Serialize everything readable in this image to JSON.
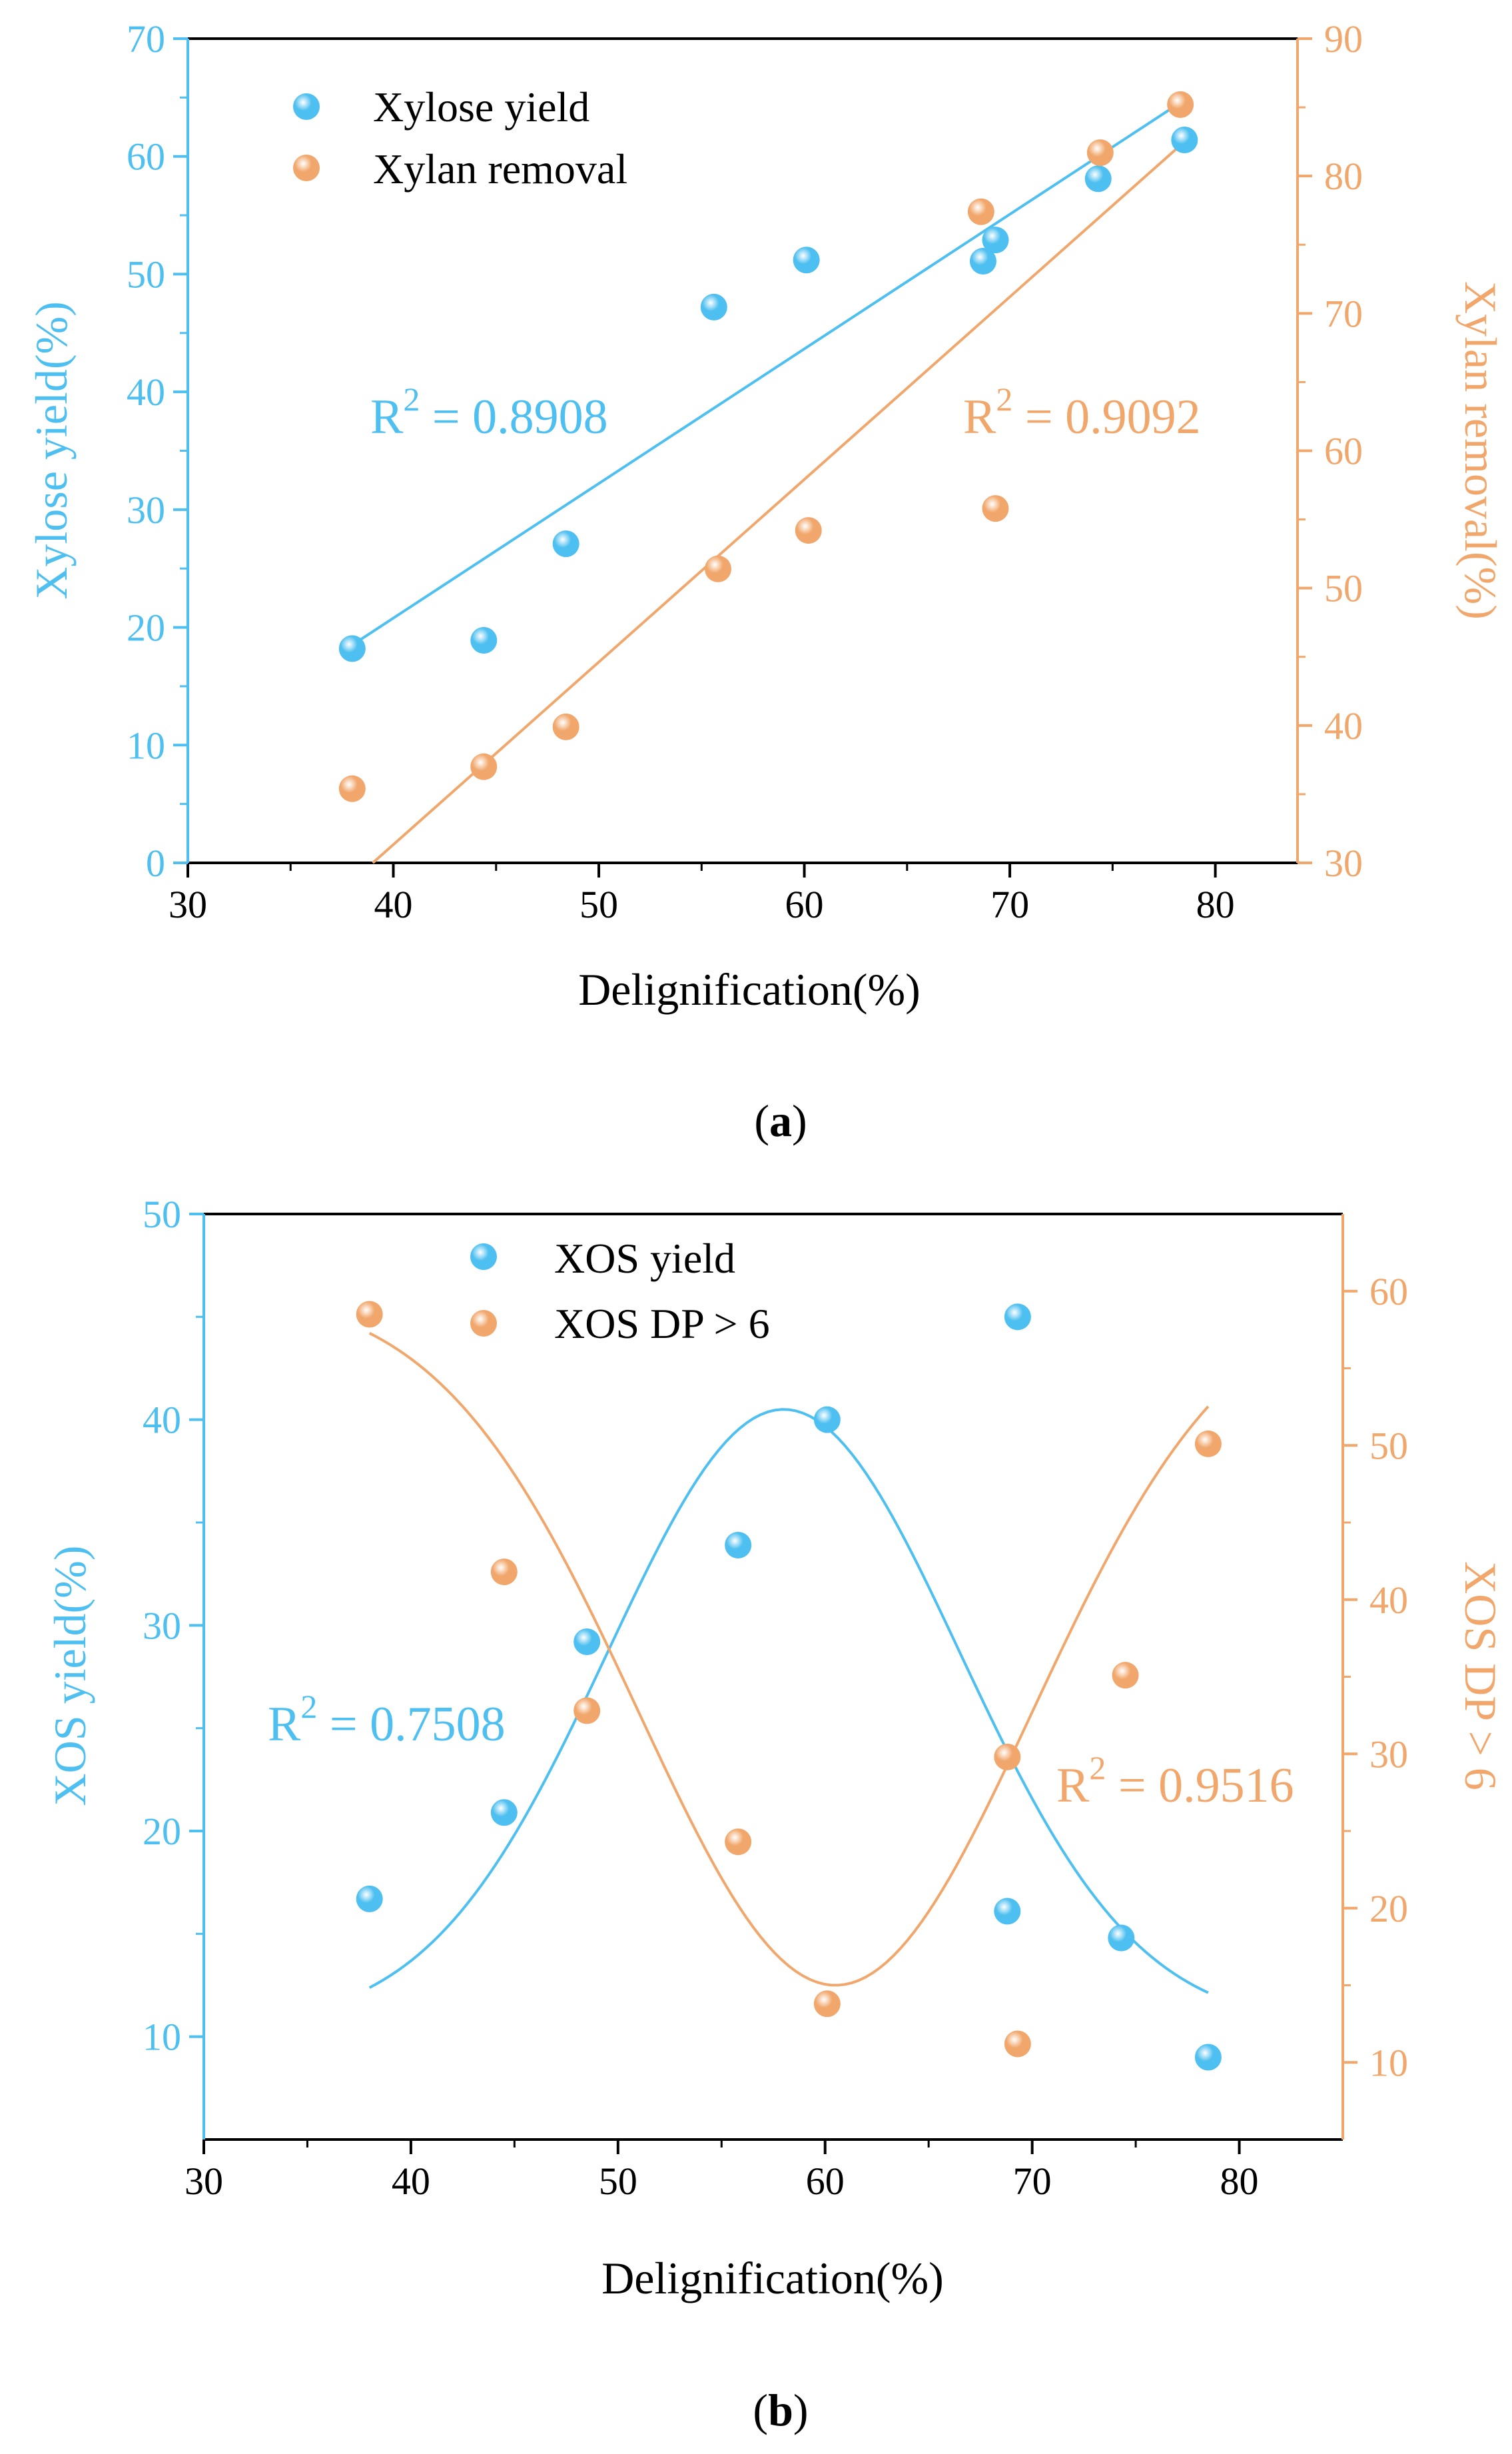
{
  "colors": {
    "blue": "#4DBFF0",
    "orange": "#F1A76B",
    "black": "#000000"
  },
  "chart_data": [
    {
      "type": "scatter",
      "panel": "a",
      "caption": "(a)",
      "caption_open": "(",
      "caption_letter": "a",
      "caption_close": ")",
      "xlabel": "Delignification(%)",
      "ylabel": "Xylose yield(%)",
      "y2label": "Xylan removal(%)",
      "xlim": [
        30,
        84
      ],
      "ylim": [
        0,
        70
      ],
      "y2lim": [
        30,
        90
      ],
      "xticks": [
        30,
        40,
        50,
        60,
        70,
        80
      ],
      "yticks": [
        0,
        10,
        20,
        30,
        40,
        50,
        60,
        70
      ],
      "y2ticks": [
        30,
        40,
        50,
        60,
        70,
        80,
        90
      ],
      "series": [
        {
          "name": "Xylose yield",
          "axis": "left",
          "color": "#4DBFF0",
          "r2_prefix": "R",
          "r2_exp": "2",
          "r2_value": " = 0.8908",
          "x": [
            38.0,
            44.4,
            48.4,
            55.6,
            60.1,
            68.7,
            69.3,
            74.3,
            78.5
          ],
          "y": [
            18.2,
            18.9,
            27.1,
            47.2,
            51.2,
            51.1,
            52.9,
            58.1,
            61.4
          ],
          "fit": {
            "kind": "linear",
            "x": [
              38.0,
              78.5
            ],
            "y": [
              18.5,
              64.8
            ]
          }
        },
        {
          "name": "Xylan removal",
          "axis": "right",
          "color": "#F1A76B",
          "r2_prefix": "R",
          "r2_exp": "2",
          "r2_value": " = 0.9092",
          "x": [
            38.0,
            44.4,
            48.4,
            55.8,
            60.2,
            68.6,
            69.3,
            74.4,
            78.3
          ],
          "y": [
            35.4,
            37.0,
            39.9,
            51.4,
            54.2,
            77.4,
            55.8,
            81.7,
            85.2
          ],
          "fit": {
            "kind": "linear",
            "x": [
              39.0,
              78.5
            ],
            "y": [
              30.0,
              82.5
            ]
          }
        }
      ]
    },
    {
      "type": "scatter",
      "panel": "b",
      "caption": "(b)",
      "caption_open": "(",
      "caption_letter": "b",
      "caption_close": ")",
      "xlabel": "Delignification(%)",
      "ylabel": "XOS yield(%)",
      "y2label": "XOS DP > 6",
      "xlim": [
        30,
        85
      ],
      "ylim": [
        5,
        50
      ],
      "y2lim": [
        5,
        65
      ],
      "xticks": [
        30,
        40,
        50,
        60,
        70,
        80
      ],
      "yticks": [
        10,
        20,
        30,
        40,
        50
      ],
      "y2ticks": [
        10,
        20,
        30,
        40,
        50,
        60
      ],
      "series": [
        {
          "name": "XOS yield",
          "axis": "left",
          "color": "#4DBFF0",
          "r2_prefix": "R",
          "r2_exp": "2",
          "r2_value": " = 0.7508",
          "x": [
            38.0,
            44.5,
            48.5,
            55.8,
            60.1,
            68.8,
            69.3,
            74.3,
            78.5
          ],
          "y": [
            16.7,
            20.9,
            29.2,
            33.9,
            40.0,
            16.1,
            45.0,
            14.8,
            9.0
          ],
          "fit": {
            "kind": "gaussian",
            "y0": 10.5,
            "A": 30.0,
            "xc": 58.0,
            "w": 8.5,
            "xrange": [
              38.0,
              78.5
            ]
          }
        },
        {
          "name": "XOS DP > 6",
          "axis": "right",
          "color": "#F1A76B",
          "r2_prefix": "R",
          "r2_exp": "2",
          "r2_value": " = 0.9516",
          "x": [
            38.0,
            44.5,
            48.5,
            55.8,
            60.1,
            68.8,
            69.3,
            74.5,
            78.5
          ],
          "y": [
            58.5,
            41.8,
            32.8,
            24.3,
            13.8,
            29.8,
            11.2,
            35.1,
            50.1
          ],
          "fit": {
            "kind": "inverted-gaussian",
            "y0": 60.0,
            "A": 45.0,
            "xc": 60.5,
            "w": 9.5,
            "xrange": [
              38.0,
              78.5
            ]
          }
        }
      ]
    }
  ]
}
